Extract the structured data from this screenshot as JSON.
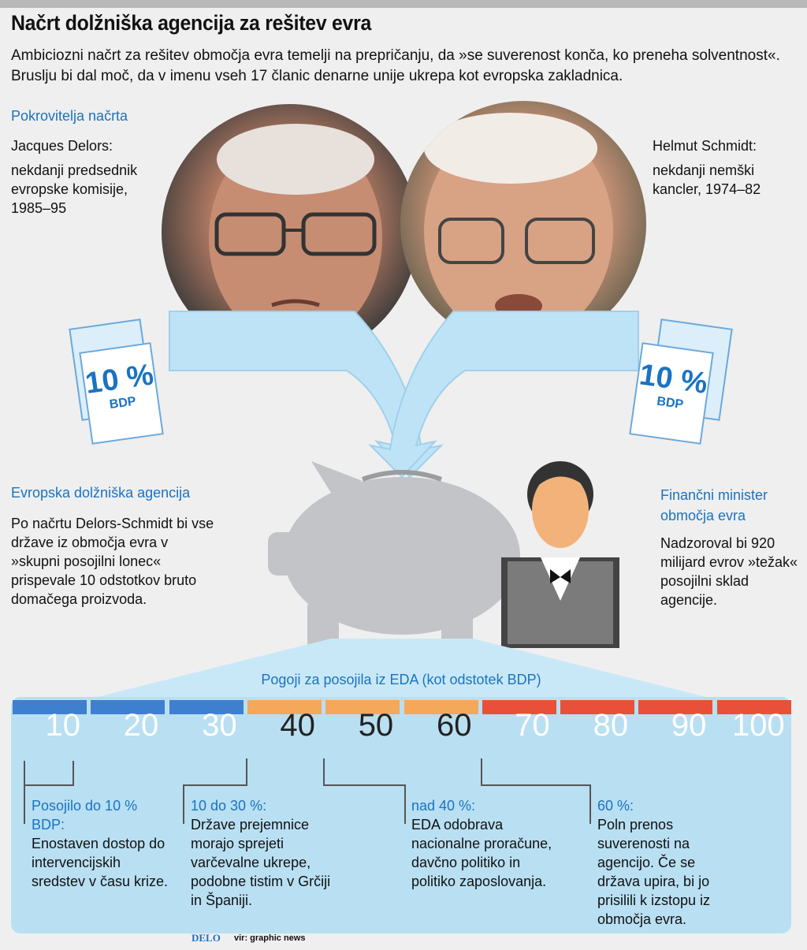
{
  "title": "Načrt dolžniška agencija za rešitev evra",
  "intro": "Ambiciozni načrt za rešitev območja evra temelji na prepričanju, da »se suverenost konča, ko preneha solventnost«. Bruslju bi dal moč, da v imenu vseh 17 članic denarne unije ukrepa kot evropska zakladnica.",
  "sponsors_heading": "Pokrovitelja načrta",
  "delors": {
    "name": "Jacques Delors:",
    "desc": "nekdanji predsednik evropske komisije, 1985–95"
  },
  "schmidt": {
    "name": "Helmut Schmidt:",
    "desc": "nekdanji nemški kancler, 1974–82"
  },
  "doc_left": {
    "pct": "10 %",
    "label": "BDP"
  },
  "doc_right": {
    "pct": "10 %",
    "label": "BDP"
  },
  "agency": {
    "heading": "Evropska dolžniška agencija",
    "text": "Po načrtu Delors-Schmidt bi vse države iz območja evra v »skupni posojilni lonec« prispevale 10 odstotkov bruto domačega proizvoda."
  },
  "minister": {
    "heading": "Finančni minister območja evra",
    "text": "Nadzoroval bi 920 milijard evrov »težak« posojilni sklad agencije."
  },
  "scale": {
    "title": "Pogoji za posojila iz EDA (kot odstotek BDP)",
    "labels": [
      "10",
      "20",
      "30",
      "40",
      "50",
      "60",
      "70",
      "80",
      "90",
      "100"
    ],
    "colors": {
      "blue": "#3f7fcf",
      "orange": "#f5a85a",
      "red": "#e8503a"
    }
  },
  "conditions": [
    {
      "head": "Posojilo do 10 % BDP:",
      "body": "Enostaven dostop do intervencijskih sredstev v času krize."
    },
    {
      "head": "10 do 30 %:",
      "body": "Države prejemnice morajo sprejeti varčevalne ukrepe, podobne tistim v Grčiji in Španiji."
    },
    {
      "head": "nad 40 %:",
      "body": "EDA odobrava nacionalne proračune, davčno politiko in politiko zaposlovanja."
    },
    {
      "head": "60 %:",
      "body": "Poln prenos suverenosti na agencijo. Če se država upira, bi jo prisilili k izstopu iz območja evra."
    }
  ],
  "footer": {
    "logo": "DELO",
    "source": "vir: graphic news"
  }
}
